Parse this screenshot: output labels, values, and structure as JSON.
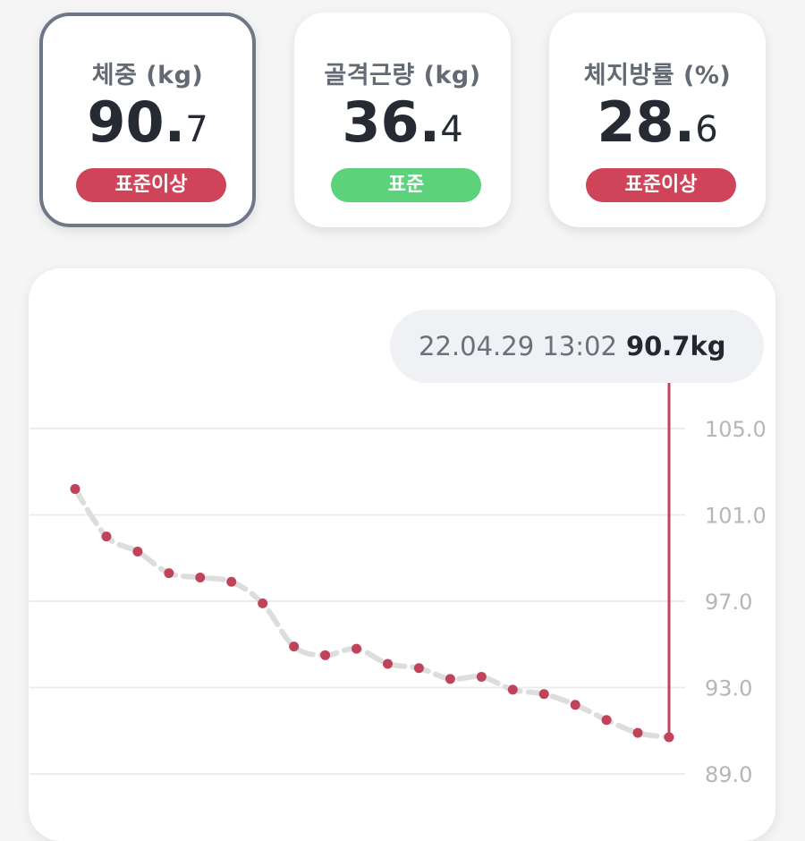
{
  "metrics": [
    {
      "label": "체중 (kg)",
      "int": "90.",
      "dec": "7",
      "badge": "표준이상",
      "badge_color": "#cf4459",
      "selected": true
    },
    {
      "label": "골격근량 (kg)",
      "int": "36.",
      "dec": "4",
      "badge": "표준",
      "badge_color": "#5cd27a",
      "selected": false
    },
    {
      "label": "체지방률 (%)",
      "int": "28.",
      "dec": "6",
      "badge": "표준이상",
      "badge_color": "#cf4459",
      "selected": false
    }
  ],
  "tooltip": {
    "datetime": "22.04.29 13:02",
    "value": "90.7kg"
  },
  "colors": {
    "point": "#c0435a",
    "line": "#dddddd",
    "marker": "#c0435a",
    "grid": "#ececec",
    "tick": "#b6b6b6"
  },
  "chart_data": {
    "type": "line",
    "ylim": [
      89.0,
      105.0
    ],
    "yticks": [
      "105.0",
      "101.0",
      "97.0",
      "93.0",
      "89.0"
    ],
    "ytick_values": [
      105.0,
      101.0,
      97.0,
      93.0,
      89.0
    ],
    "series": [
      {
        "values": [
          102.2,
          100.0,
          99.3,
          98.3,
          98.1,
          97.9,
          96.9,
          94.9,
          94.5,
          94.8,
          94.1,
          93.9,
          93.4,
          93.5,
          92.9,
          92.7,
          92.2,
          91.5,
          90.9,
          90.7
        ]
      }
    ],
    "selected_index": 19
  }
}
